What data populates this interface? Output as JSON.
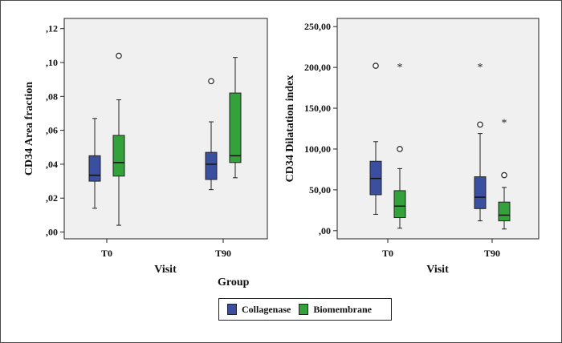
{
  "legend": {
    "title": "Group",
    "items": [
      {
        "label": "Collagenase",
        "color": "#3a4fa0"
      },
      {
        "label": "Biomembrane",
        "color": "#33a23a"
      }
    ]
  },
  "chart_data": [
    {
      "type": "box",
      "xlabel": "Visit",
      "ylabel": "CD34 Area fraction",
      "ylim": [
        -0.004,
        0.126
      ],
      "yticks": [
        0,
        0.02,
        0.04,
        0.06,
        0.08,
        0.1,
        0.12
      ],
      "ytick_labels": [
        ",00",
        ",02",
        ",04",
        ",06",
        ",08",
        ",10",
        ",12"
      ],
      "categories": [
        "T0",
        "T90"
      ],
      "series": [
        {
          "name": "Collagenase",
          "color": "#3a4fa0",
          "boxes": [
            {
              "category": "T0",
              "min": 0.014,
              "q1": 0.03,
              "median": 0.0335,
              "q3": 0.045,
              "max": 0.067,
              "outliers": [],
              "extremes": []
            },
            {
              "category": "T90",
              "min": 0.025,
              "q1": 0.031,
              "median": 0.04,
              "q3": 0.047,
              "max": 0.065,
              "outliers": [
                0.089
              ],
              "extremes": []
            }
          ]
        },
        {
          "name": "Biomembrane",
          "color": "#33a23a",
          "boxes": [
            {
              "category": "T0",
              "min": 0.004,
              "q1": 0.033,
              "median": 0.041,
              "q3": 0.057,
              "max": 0.078,
              "outliers": [
                0.104
              ],
              "extremes": []
            },
            {
              "category": "T90",
              "min": 0.032,
              "q1": 0.041,
              "median": 0.045,
              "q3": 0.082,
              "max": 0.103,
              "outliers": [],
              "extremes": []
            }
          ]
        }
      ]
    },
    {
      "type": "box",
      "xlabel": "Visit",
      "ylabel": "CD34 Dilatation index",
      "ylim": [
        -10,
        260
      ],
      "yticks": [
        0,
        50,
        100,
        150,
        200,
        250
      ],
      "ytick_labels": [
        ",00",
        "50,00",
        "100,00",
        "150,00",
        "200,00",
        "250,00"
      ],
      "categories": [
        "T0",
        "T90"
      ],
      "series": [
        {
          "name": "Collagenase",
          "color": "#3a4fa0",
          "boxes": [
            {
              "category": "T0",
              "min": 20,
              "q1": 44,
              "median": 64,
              "q3": 85,
              "max": 109,
              "outliers": [
                202
              ],
              "extremes": []
            },
            {
              "category": "T90",
              "min": 12,
              "q1": 27,
              "median": 41,
              "q3": 66,
              "max": 119,
              "outliers": [
                130
              ],
              "extremes": [
                202
              ]
            }
          ]
        },
        {
          "name": "Biomembrane",
          "color": "#33a23a",
          "boxes": [
            {
              "category": "T0",
              "min": 3,
              "q1": 16,
              "median": 30,
              "q3": 49,
              "max": 76,
              "outliers": [
                100
              ],
              "extremes": [
                202
              ]
            },
            {
              "category": "T90",
              "min": 2,
              "q1": 12,
              "median": 19,
              "q3": 35,
              "max": 53,
              "outliers": [
                68
              ],
              "extremes": [
                134
              ]
            }
          ]
        }
      ]
    }
  ]
}
